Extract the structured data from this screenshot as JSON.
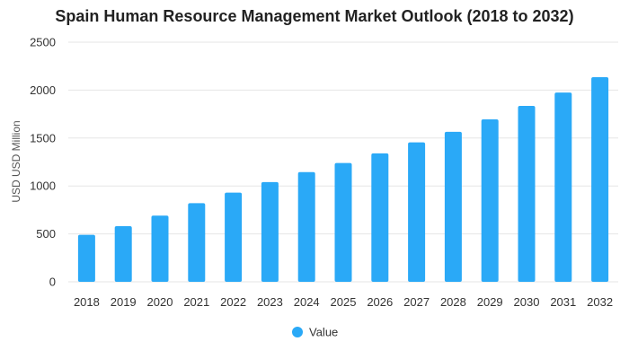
{
  "chart_data": {
    "type": "bar",
    "title": "Spain Human Resource Management Market Outlook (2018 to 2032)",
    "xlabel": "",
    "ylabel": "USD USD Million",
    "categories": [
      "2018",
      "2019",
      "2020",
      "2021",
      "2022",
      "2023",
      "2024",
      "2025",
      "2026",
      "2027",
      "2028",
      "2029",
      "2030",
      "2031",
      "2032"
    ],
    "series": [
      {
        "name": "Value",
        "color": "#2aa9f7",
        "values": [
          490,
          580,
          690,
          820,
          930,
          1040,
          1145,
          1240,
          1340,
          1455,
          1565,
          1695,
          1835,
          1975,
          2135
        ]
      }
    ],
    "ylim": [
      0,
      2500
    ],
    "yticks": [
      0,
      500,
      1000,
      1500,
      2000,
      2500
    ],
    "grid": true,
    "legend_position": "bottom"
  }
}
